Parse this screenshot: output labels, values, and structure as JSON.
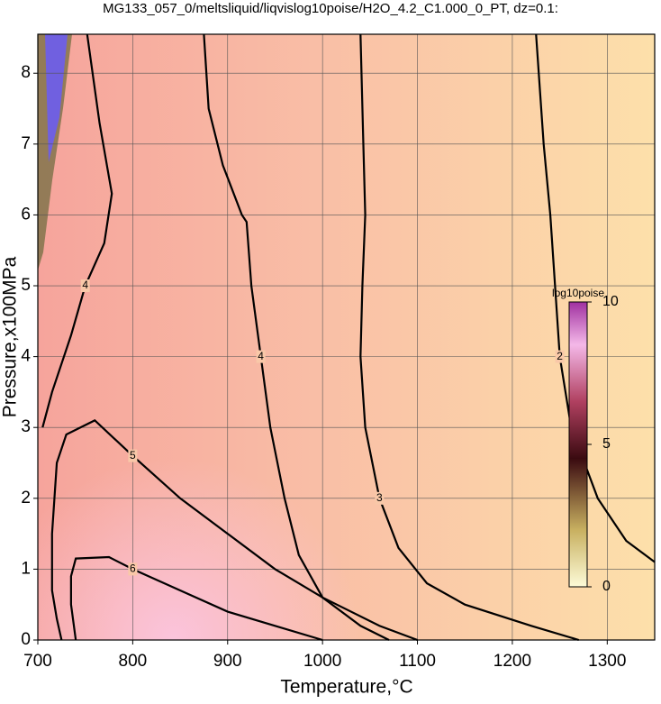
{
  "chart_data": {
    "type": "contour",
    "title": "MG133_057_0/meltsliquid/liqvislog10poise/H2O_4.2_C1.000_0_PT, dz=0.1:",
    "xlabel": "Temperature,°C",
    "ylabel": "Pressure,x100MPa",
    "xlim": [
      700,
      1350
    ],
    "ylim": [
      0,
      8.55
    ],
    "xticks": [
      700,
      800,
      900,
      1000,
      1100,
      1200,
      1300
    ],
    "yticks": [
      0,
      1,
      2,
      3,
      4,
      5,
      6,
      7,
      8
    ],
    "grid": true,
    "line_color": "#000000",
    "contours": [
      {
        "level": 2,
        "x": [
          1225,
          1233,
          1240,
          1245,
          1250,
          1262,
          1290,
          1320,
          1350
        ],
        "y": [
          8.55,
          7,
          6,
          5,
          4,
          3,
          2,
          1.4,
          1.1
        ]
      },
      {
        "level": 3,
        "x": [
          1040,
          1043,
          1045,
          1042,
          1040,
          1045,
          1060,
          1080,
          1110,
          1150,
          1220,
          1270
        ],
        "y": [
          8.55,
          7,
          6,
          5,
          4,
          3,
          2,
          1.3,
          0.8,
          0.5,
          0.2,
          0
        ]
      },
      {
        "level": 4,
        "x": [
          875,
          880,
          895,
          915,
          920,
          925,
          935,
          945,
          960,
          975,
          1000,
          1040,
          1070
        ],
        "y": [
          8.55,
          7.5,
          6.7,
          6.0,
          5.9,
          5.0,
          4,
          3,
          2,
          1.2,
          0.6,
          0.2,
          0
        ]
      },
      {
        "level": 4,
        "x": [
          752,
          765,
          778,
          770,
          750,
          735,
          715,
          705
        ],
        "y": [
          8.55,
          7.3,
          6.3,
          5.6,
          5.0,
          4.3,
          3.5,
          3
        ]
      },
      {
        "level": 5,
        "x": [
          725,
          720,
          715,
          715,
          720,
          730,
          760,
          800,
          850,
          900,
          950,
          1000,
          1060,
          1100
        ],
        "y": [
          0,
          0.3,
          0.7,
          1.5,
          2.5,
          2.9,
          3.1,
          2.6,
          2.0,
          1.5,
          1.0,
          0.6,
          0.2,
          0
        ]
      },
      {
        "level": 6,
        "x": [
          740,
          735,
          735,
          740,
          775,
          800,
          850,
          900,
          950,
          1000
        ],
        "y": [
          0,
          0.5,
          0.9,
          1.15,
          1.17,
          1.0,
          0.7,
          0.4,
          0.2,
          0
        ]
      }
    ],
    "colorbar": {
      "label": "log10poise",
      "clim": [
        0,
        10
      ],
      "ticks": [
        0,
        5,
        10
      ]
    }
  }
}
